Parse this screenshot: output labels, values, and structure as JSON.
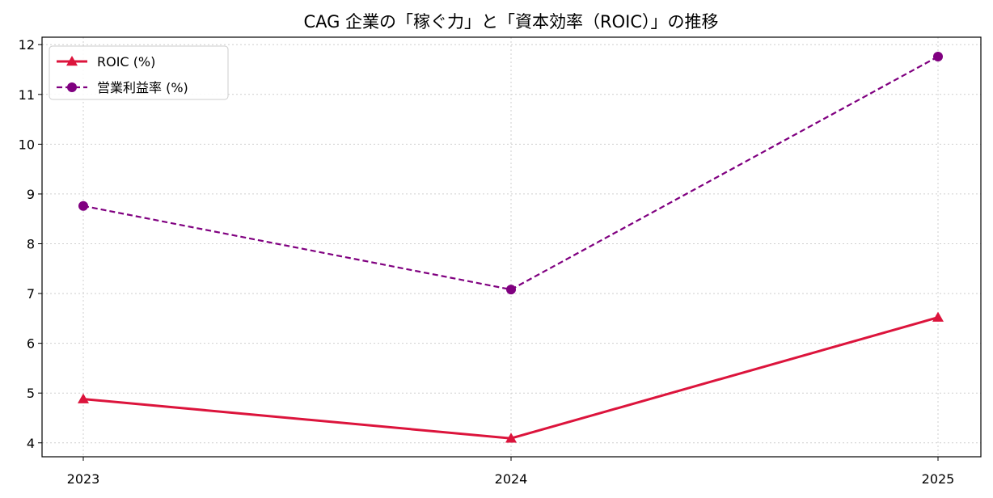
{
  "chart_data": {
    "type": "line",
    "title": "CAG 企業の「稼ぐ力」と「資本効率（ROIC）」の推移",
    "xlabel": "",
    "ylabel": "",
    "x": [
      "2023",
      "2024",
      "2025"
    ],
    "ylim": [
      3.72,
      12.15
    ],
    "yticks": [
      4,
      5,
      6,
      7,
      8,
      9,
      10,
      11,
      12
    ],
    "grid": true,
    "legend_position": "top-left",
    "series": [
      {
        "name": "ROIC (%)",
        "values": [
          4.88,
          4.09,
          6.52
        ],
        "color": "#dc143c",
        "marker": "triangle",
        "line_style": "solid"
      },
      {
        "name": "営業利益率 (%)",
        "values": [
          8.76,
          7.08,
          11.76
        ],
        "color": "#800080",
        "marker": "circle",
        "line_style": "dashed"
      }
    ]
  }
}
